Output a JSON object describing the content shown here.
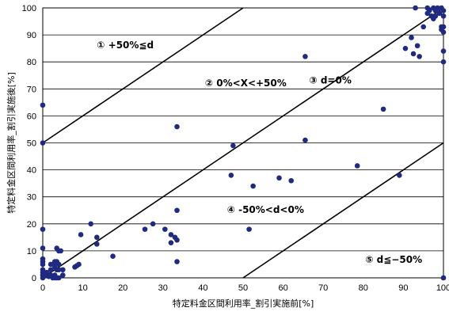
{
  "chart_data": {
    "type": "scatter",
    "xlabel": "特定料金区間利用率_割引実施前[%]",
    "ylabel": "特定料金区間利用率_割引実施後[%]",
    "xlim": [
      0,
      100
    ],
    "ylim": [
      0,
      100
    ],
    "xticks": [
      "0",
      "10",
      "20",
      "30",
      "40",
      "50",
      "60",
      "70",
      "80",
      "90",
      "100"
    ],
    "yticks": [
      "0",
      "10",
      "20",
      "30",
      "40",
      "50",
      "60",
      "70",
      "80",
      "90",
      "100"
    ],
    "grid": "horizontal",
    "reference_lines": [
      {
        "label": "+50%",
        "points": [
          [
            0,
            50
          ],
          [
            50,
            100
          ]
        ]
      },
      {
        "label": "0%",
        "points": [
          [
            0,
            0
          ],
          [
            100,
            100
          ]
        ]
      },
      {
        "label": "-50%",
        "points": [
          [
            50,
            0
          ],
          [
            100,
            50
          ]
        ]
      }
    ],
    "annotations": [
      {
        "text": "① +50%≦d",
        "x": 13.5,
        "y": 85
      },
      {
        "text": "② 0%<X<+50%",
        "x": 40.5,
        "y": 71
      },
      {
        "text": "③ d=0%",
        "x": 66.5,
        "y": 72
      },
      {
        "text": "④ -50%<d<0%",
        "x": 46,
        "y": 24
      },
      {
        "text": "⑤ d≦−50%",
        "x": 80.5,
        "y": 5.5
      }
    ],
    "series": [
      {
        "color": "#1f2a80",
        "points": [
          [
            0,
            64
          ],
          [
            0,
            50
          ],
          [
            0,
            18
          ],
          [
            0,
            11
          ],
          [
            0,
            7
          ],
          [
            0,
            6
          ],
          [
            0,
            5
          ],
          [
            0,
            3
          ],
          [
            0,
            2
          ],
          [
            0,
            1
          ],
          [
            0,
            0
          ],
          [
            1,
            1
          ],
          [
            1,
            2
          ],
          [
            1.5,
            0.5
          ],
          [
            2,
            5
          ],
          [
            2,
            3
          ],
          [
            2,
            1
          ],
          [
            2.5,
            0
          ],
          [
            3,
            6
          ],
          [
            3,
            5
          ],
          [
            3,
            4
          ],
          [
            3,
            1
          ],
          [
            3,
            0
          ],
          [
            3.5,
            11
          ],
          [
            3.5,
            6
          ],
          [
            3.5,
            3
          ],
          [
            3.5,
            0
          ],
          [
            4,
            10
          ],
          [
            4,
            5
          ],
          [
            4,
            3
          ],
          [
            4,
            0
          ],
          [
            4.5,
            10
          ],
          [
            5,
            3
          ],
          [
            5,
            1
          ],
          [
            8,
            4
          ],
          [
            8.5,
            4.5
          ],
          [
            9,
            5
          ],
          [
            9.5,
            16
          ],
          [
            12,
            20
          ],
          [
            13.5,
            15
          ],
          [
            13.5,
            12.5
          ],
          [
            17.5,
            8
          ],
          [
            25.5,
            18
          ],
          [
            27.5,
            20
          ],
          [
            30.5,
            18
          ],
          [
            32,
            16
          ],
          [
            32,
            13
          ],
          [
            33,
            15
          ],
          [
            33.5,
            56
          ],
          [
            33.5,
            25
          ],
          [
            33.5,
            14
          ],
          [
            33.5,
            6
          ],
          [
            47,
            38
          ],
          [
            47.5,
            49
          ],
          [
            51.5,
            18
          ],
          [
            52.5,
            34
          ],
          [
            59,
            37
          ],
          [
            62,
            36
          ],
          [
            65.5,
            82
          ],
          [
            65.5,
            51
          ],
          [
            78.5,
            41.5
          ],
          [
            85,
            62.5
          ],
          [
            89,
            38
          ],
          [
            90.5,
            85
          ],
          [
            92,
            89
          ],
          [
            92.5,
            83
          ],
          [
            93,
            100
          ],
          [
            93.5,
            86
          ],
          [
            94,
            82
          ],
          [
            95,
            93
          ],
          [
            96,
            98
          ],
          [
            96,
            100
          ],
          [
            96.5,
            99
          ],
          [
            97,
            97
          ],
          [
            97.5,
            96
          ],
          [
            97.5,
            100
          ],
          [
            98,
            99
          ],
          [
            98,
            97
          ],
          [
            98.5,
            100
          ],
          [
            99,
            98
          ],
          [
            99.5,
            100
          ],
          [
            99.5,
            93
          ],
          [
            99.5,
            92
          ],
          [
            100,
            99
          ],
          [
            100,
            97
          ],
          [
            100,
            93
          ],
          [
            100,
            91
          ],
          [
            100,
            84
          ],
          [
            100,
            80
          ],
          [
            100,
            0
          ]
        ]
      }
    ]
  }
}
